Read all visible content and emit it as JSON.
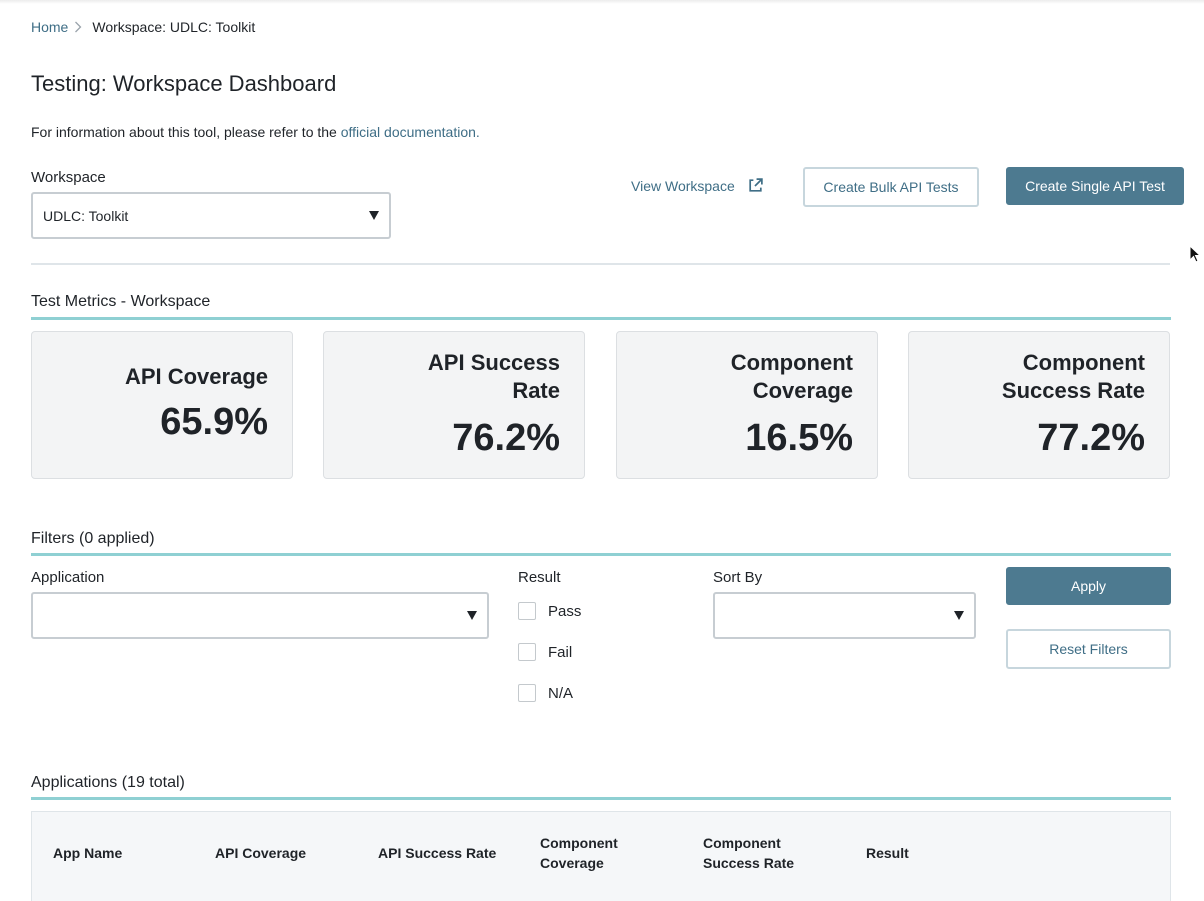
{
  "breadcrumb": {
    "home": "Home",
    "current": "Workspace: UDLC: Toolkit"
  },
  "page": {
    "title": "Testing: Workspace Dashboard",
    "info_prefix": "For information about this tool, please refer to the ",
    "info_link": "official documentation."
  },
  "workspace": {
    "label": "Workspace",
    "selected": "UDLC: Toolkit",
    "view_link": "View Workspace",
    "bulk_button": "Create Bulk API Tests",
    "single_button": "Create Single API Test"
  },
  "metrics": {
    "title": "Test Metrics - Workspace",
    "cards": [
      {
        "label_line1": "API Coverage",
        "label_line2": "",
        "value": "65.9%"
      },
      {
        "label_line1": "API Success",
        "label_line2": "Rate",
        "value": "76.2%"
      },
      {
        "label_line1": "Component",
        "label_line2": "Coverage",
        "value": "16.5%"
      },
      {
        "label_line1": "Component",
        "label_line2": "Success Rate",
        "value": "77.2%"
      }
    ]
  },
  "filters": {
    "title": "Filters (0 applied)",
    "application_label": "Application",
    "application_value": "",
    "result_label": "Result",
    "result_options": [
      "Pass",
      "Fail",
      "N/A"
    ],
    "sort_label": "Sort By",
    "sort_value": "",
    "apply_button": "Apply",
    "reset_button": "Reset Filters"
  },
  "applications": {
    "title": "Applications (19 total)",
    "columns": [
      {
        "line1": "App Name",
        "line2": ""
      },
      {
        "line1": "API Coverage",
        "line2": ""
      },
      {
        "line1": "API Success Rate",
        "line2": ""
      },
      {
        "line1": "Component",
        "line2": "Coverage"
      },
      {
        "line1": "Component",
        "line2": "Success Rate"
      },
      {
        "line1": "Result",
        "line2": ""
      }
    ]
  },
  "colors": {
    "accent": "#4d7a90",
    "link": "#3f6e86",
    "section_line": "#8fd0d3",
    "card_bg": "#f3f4f5"
  },
  "icons": {
    "breadcrumb_separator": "chevron-right-icon",
    "view_workspace": "external-link-icon",
    "select_caret": "caret-down-icon",
    "pointer": "mouse-cursor-icon"
  }
}
